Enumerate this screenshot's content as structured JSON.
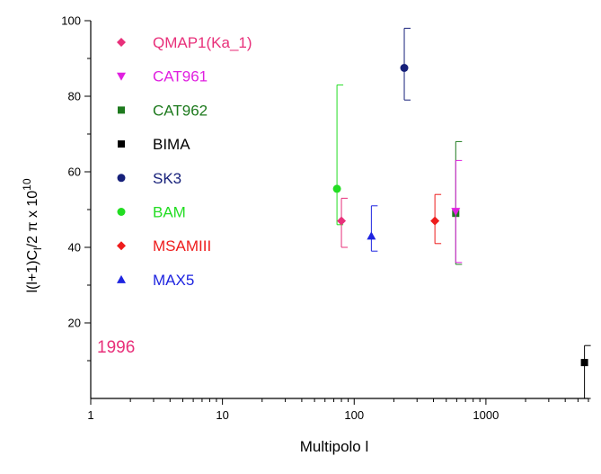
{
  "chart_data": {
    "type": "scatter",
    "xlabel": "Multipolo l",
    "ylabel": "l(l+1)C",
    "ylabel_sub1": "l",
    "ylabel_mid": "/2 π x 10",
    "ylabel_sup": "10",
    "x_scale": "log",
    "xlim": [
      1,
      6000
    ],
    "ylim": [
      0,
      100
    ],
    "x_ticks": [
      1,
      10,
      100,
      1000
    ],
    "x_tick_labels": [
      "1",
      "10",
      "100",
      "1000"
    ],
    "y_ticks": [
      20,
      40,
      60,
      80,
      100
    ],
    "y_tick_labels": [
      "20",
      "40",
      "60",
      "80",
      "100"
    ],
    "grid": false,
    "legend_position": "top-left",
    "annotation": {
      "text": "1996",
      "color": "#e8307a"
    },
    "series": [
      {
        "name": "QMAP1(Ka_1)",
        "marker": "diamond",
        "color": "#e8307a",
        "points": [
          {
            "x": 80,
            "y": 47,
            "ylow": 40,
            "yhigh": 53
          }
        ]
      },
      {
        "name": "CAT961",
        "marker": "triangle-down",
        "color": "#e020e0",
        "points": [
          {
            "x": 590,
            "y": 49.5,
            "ylow": 36,
            "yhigh": 63
          }
        ]
      },
      {
        "name": "CAT962",
        "marker": "square",
        "color": "#1e7a1e",
        "points": [
          {
            "x": 590,
            "y": 49,
            "ylow": 35.5,
            "yhigh": 68
          }
        ]
      },
      {
        "name": "BIMA",
        "marker": "square",
        "color": "#000000",
        "points": [
          {
            "x": 5600,
            "y": 9.5,
            "ylow": 0,
            "yhigh": 14
          }
        ]
      },
      {
        "name": "SK3",
        "marker": "circle",
        "color": "#16207a",
        "points": [
          {
            "x": 240,
            "y": 87.5,
            "ylow": 79,
            "yhigh": 98
          }
        ]
      },
      {
        "name": "BAM",
        "marker": "circle",
        "color": "#22dd22",
        "points": [
          {
            "x": 74,
            "y": 55.5,
            "ylow": 46,
            "yhigh": 83
          }
        ]
      },
      {
        "name": "MSAMIII",
        "marker": "diamond",
        "color": "#ee1c1c",
        "points": [
          {
            "x": 410,
            "y": 47,
            "ylow": 41,
            "yhigh": 54
          }
        ]
      },
      {
        "name": "MAX5",
        "marker": "triangle-up",
        "color": "#1e24e0",
        "points": [
          {
            "x": 135,
            "y": 43,
            "ylow": 39,
            "yhigh": 51
          }
        ]
      }
    ]
  }
}
